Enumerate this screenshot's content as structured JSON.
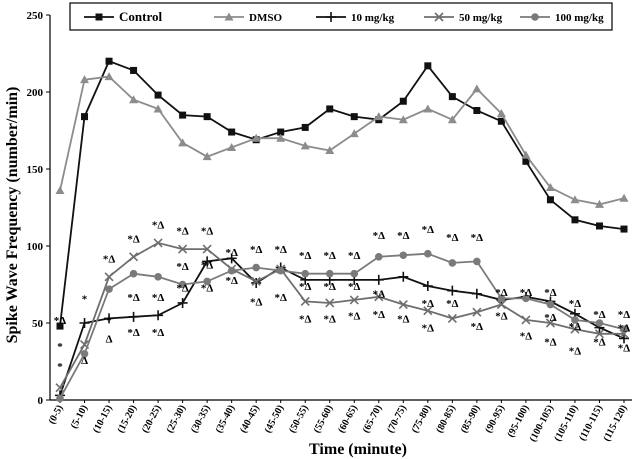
{
  "chart_data": {
    "type": "line",
    "xlabel": "Time (minute)",
    "ylabel": "Spike Wave Frequency (number/min)",
    "ylim": [
      0,
      250
    ],
    "yticks": [
      0,
      50,
      100,
      150,
      200,
      250
    ],
    "grid": false,
    "legend_position": "top",
    "categories": [
      "(0-5)",
      "(5-10)",
      "(10-15)",
      "(15-20)",
      "(20-25)",
      "(25-30)",
      "(30-35)",
      "(35-40)",
      "(40-45)",
      "(45-50)",
      "(50-55)",
      "(55-60)",
      "(60-65)",
      "(65-70)",
      "(70-75)",
      "(75-80)",
      "(80-85)",
      "(85-90)",
      "(90-95)",
      "(95-100)",
      "(100-105)",
      "(105-110)",
      "(110-115)",
      "(115-120)"
    ],
    "series": [
      {
        "name": "Control",
        "color": "#111111",
        "marker": "square",
        "values": [
          48,
          184,
          220,
          214,
          198,
          185,
          184,
          174,
          169,
          174,
          177,
          189,
          184,
          182,
          194,
          217,
          197,
          188,
          181,
          155,
          130,
          117,
          113,
          111
        ]
      },
      {
        "name": "DMSO",
        "color": "#8c8c8c",
        "marker": "triangle",
        "values": [
          136,
          208,
          210,
          195,
          189,
          167,
          158,
          164,
          170,
          170,
          165,
          162,
          173,
          184,
          182,
          189,
          182,
          202,
          186,
          159,
          138,
          130,
          127,
          131
        ]
      },
      {
        "name": "10 mg/kg",
        "color": "#111111",
        "marker": "plus",
        "values": [
          3,
          50,
          53,
          54,
          55,
          63,
          90,
          92,
          76,
          86,
          78,
          78,
          78,
          78,
          80,
          74,
          71,
          69,
          65,
          67,
          64,
          56,
          47,
          40
        ]
      },
      {
        "name": "50 mg/kg",
        "color": "#6e6e6e",
        "marker": "x",
        "values": [
          8,
          36,
          80,
          93,
          102,
          98,
          98,
          85,
          77,
          85,
          64,
          63,
          65,
          67,
          62,
          58,
          53,
          57,
          62,
          52,
          50,
          46,
          43,
          43
        ]
      },
      {
        "name": "100 mg/kg",
        "color": "#7a7a7a",
        "marker": "circle",
        "values": [
          1,
          30,
          72,
          82,
          80,
          75,
          77,
          84,
          86,
          84,
          82,
          82,
          82,
          93,
          94,
          95,
          89,
          90,
          66,
          66,
          62,
          52,
          50,
          46
        ]
      }
    ],
    "annotations": [
      {
        "text": "*Δ",
        "x": "(0-5)",
        "y": 52
      },
      {
        "text": "*",
        "x": "(0-5)",
        "y": 35
      },
      {
        "text": "*",
        "x": "(0-5)",
        "y": 22
      },
      {
        "text": "Δ",
        "x": "(5-10)",
        "y": 26
      },
      {
        "text": "*",
        "x": "(5-10)",
        "y": 66
      },
      {
        "text": "*Δ",
        "x": "(10-15)",
        "y": 92
      },
      {
        "text": "*",
        "x": "(10-15)",
        "y": 52
      },
      {
        "text": "Δ",
        "x": "(10-15)",
        "y": 40
      },
      {
        "text": "*Δ",
        "x": "(15-20)",
        "y": 105
      },
      {
        "text": "*Δ",
        "x": "(15-20)",
        "y": 67
      },
      {
        "text": "*Δ",
        "x": "(15-20)",
        "y": 44
      },
      {
        "text": "*Δ",
        "x": "(20-25)",
        "y": 114
      },
      {
        "text": "*Δ",
        "x": "(20-25)",
        "y": 67
      },
      {
        "text": "*Δ",
        "x": "(20-25)",
        "y": 44
      },
      {
        "text": "*Δ",
        "x": "(25-30)",
        "y": 110
      },
      {
        "text": "*Δ",
        "x": "(25-30)",
        "y": 87
      },
      {
        "text": "*Δ",
        "x": "(25-30)",
        "y": 73
      },
      {
        "text": "*Δ",
        "x": "(30-35)",
        "y": 110
      },
      {
        "text": "*Δ",
        "x": "(30-35)",
        "y": 88
      },
      {
        "text": "*Δ",
        "x": "(30-35)",
        "y": 73
      },
      {
        "text": "*Δ",
        "x": "(35-40)",
        "y": 96
      },
      {
        "text": "*Δ",
        "x": "(35-40)",
        "y": 78
      },
      {
        "text": "*Δ",
        "x": "(40-45)",
        "y": 98
      },
      {
        "text": "*Δ",
        "x": "(40-45)",
        "y": 64
      },
      {
        "text": "*Δ",
        "x": "(45-50)",
        "y": 98
      },
      {
        "text": "*Δ",
        "x": "(45-50)",
        "y": 67
      },
      {
        "text": "*Δ",
        "x": "(50-55)",
        "y": 94
      },
      {
        "text": "*Δ",
        "x": "(50-55)",
        "y": 74
      },
      {
        "text": "*Δ",
        "x": "(50-55)",
        "y": 53
      },
      {
        "text": "*Δ",
        "x": "(55-60)",
        "y": 94
      },
      {
        "text": "*Δ",
        "x": "(55-60)",
        "y": 74
      },
      {
        "text": "*Δ",
        "x": "(55-60)",
        "y": 53
      },
      {
        "text": "*Δ",
        "x": "(60-65)",
        "y": 94
      },
      {
        "text": "*Δ",
        "x": "(60-65)",
        "y": 74
      },
      {
        "text": "*Δ",
        "x": "(60-65)",
        "y": 55
      },
      {
        "text": "*Δ",
        "x": "(65-70)",
        "y": 107
      },
      {
        "text": "*Δ",
        "x": "(65-70)",
        "y": 69
      },
      {
        "text": "*Δ",
        "x": "(65-70)",
        "y": 56
      },
      {
        "text": "*Δ",
        "x": "(70-75)",
        "y": 107
      },
      {
        "text": "*Δ",
        "x": "(70-75)",
        "y": 53
      },
      {
        "text": "*Δ",
        "x": "(75-80)",
        "y": 111
      },
      {
        "text": "*Δ",
        "x": "(75-80)",
        "y": 63
      },
      {
        "text": "*Δ",
        "x": "(75-80)",
        "y": 47
      },
      {
        "text": "*Δ",
        "x": "(80-85)",
        "y": 106
      },
      {
        "text": "*Δ",
        "x": "(80-85)",
        "y": 63
      },
      {
        "text": "*Δ",
        "x": "(85-90)",
        "y": 106
      },
      {
        "text": "*Δ",
        "x": "(85-90)",
        "y": 48
      },
      {
        "text": "*Δ",
        "x": "(90-95)",
        "y": 70
      },
      {
        "text": "*Δ",
        "x": "(90-95)",
        "y": 55
      },
      {
        "text": "*Δ",
        "x": "(95-100)",
        "y": 70
      },
      {
        "text": "*Δ",
        "x": "(95-100)",
        "y": 42
      },
      {
        "text": "*Δ",
        "x": "(100-105)",
        "y": 70
      },
      {
        "text": "*Δ",
        "x": "(100-105)",
        "y": 54
      },
      {
        "text": "*Δ",
        "x": "(100-105)",
        "y": 38
      },
      {
        "text": "*Δ",
        "x": "(105-110)",
        "y": 63
      },
      {
        "text": "*Δ",
        "x": "(105-110)",
        "y": 48
      },
      {
        "text": "*Δ",
        "x": "(105-110)",
        "y": 32
      },
      {
        "text": "*Δ",
        "x": "(110-115)",
        "y": 56
      },
      {
        "text": "*Δ",
        "x": "(110-115)",
        "y": 38
      },
      {
        "text": "*Δ",
        "x": "(115-120)",
        "y": 56
      },
      {
        "text": "*Δ",
        "x": "(115-120)",
        "y": 47
      },
      {
        "text": "*Δ",
        "x": "(115-120)",
        "y": 34
      }
    ]
  }
}
